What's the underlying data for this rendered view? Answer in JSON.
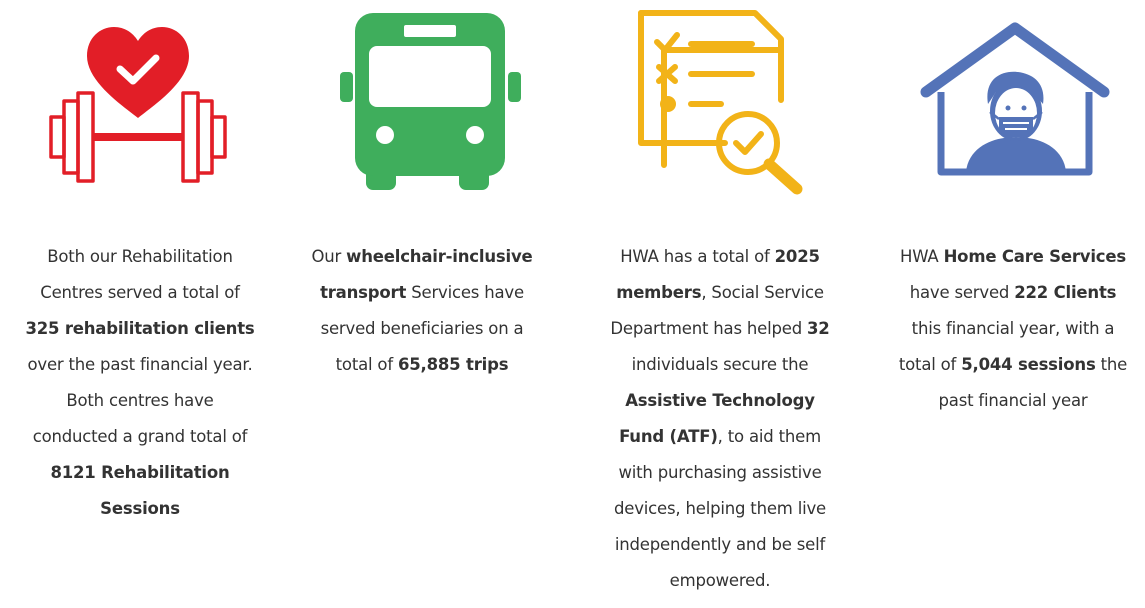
{
  "colors": {
    "rehab": "#e21e27",
    "transport": "#3fae5c",
    "members": "#f2b318",
    "homecare": "#5473b8",
    "text": "#333333"
  },
  "columns": [
    {
      "icon": "heart-dumbbell-icon",
      "lines": [
        [
          "Both our Rehabilitation"
        ],
        [
          "Centres served a total of"
        ],
        [
          "**325 rehabilitation clients**"
        ],
        [
          "over the past financial year."
        ],
        [
          "Both centres have"
        ],
        [
          "conducted a grand total of"
        ],
        [
          "**8121 Rehabilitation**"
        ],
        [
          "**Sessions**"
        ]
      ]
    },
    {
      "icon": "bus-icon",
      "lines": [
        [
          "Our ",
          "**wheelchair-inclusive**"
        ],
        [
          "**transport**",
          " Services have"
        ],
        [
          "served beneficiaries on a"
        ],
        [
          "total of ",
          "**65,885 trips**"
        ]
      ]
    },
    {
      "icon": "checklist-magnifier-icon",
      "lines": [
        [
          "HWA has a total of ",
          "**2025**"
        ],
        [
          "**members**",
          ", Social Service"
        ],
        [
          "Department has helped ",
          "**32**"
        ],
        [
          "individuals secure the"
        ],
        [
          "**Assistive Technology**"
        ],
        [
          "**Fund (ATF)**",
          ", to aid them"
        ],
        [
          "with purchasing assistive"
        ],
        [
          "devices, helping them live"
        ],
        [
          "independently and be self"
        ],
        [
          "empowered."
        ]
      ]
    },
    {
      "icon": "home-masked-person-icon",
      "lines": [
        [
          "HWA ",
          "**Home Care Services**"
        ],
        [
          "have served ",
          "**222 Clients**"
        ],
        [
          "this financial year, with a"
        ],
        [
          "total of ",
          "**5,044 sessions**",
          " the"
        ],
        [
          "past financial year"
        ]
      ]
    }
  ]
}
